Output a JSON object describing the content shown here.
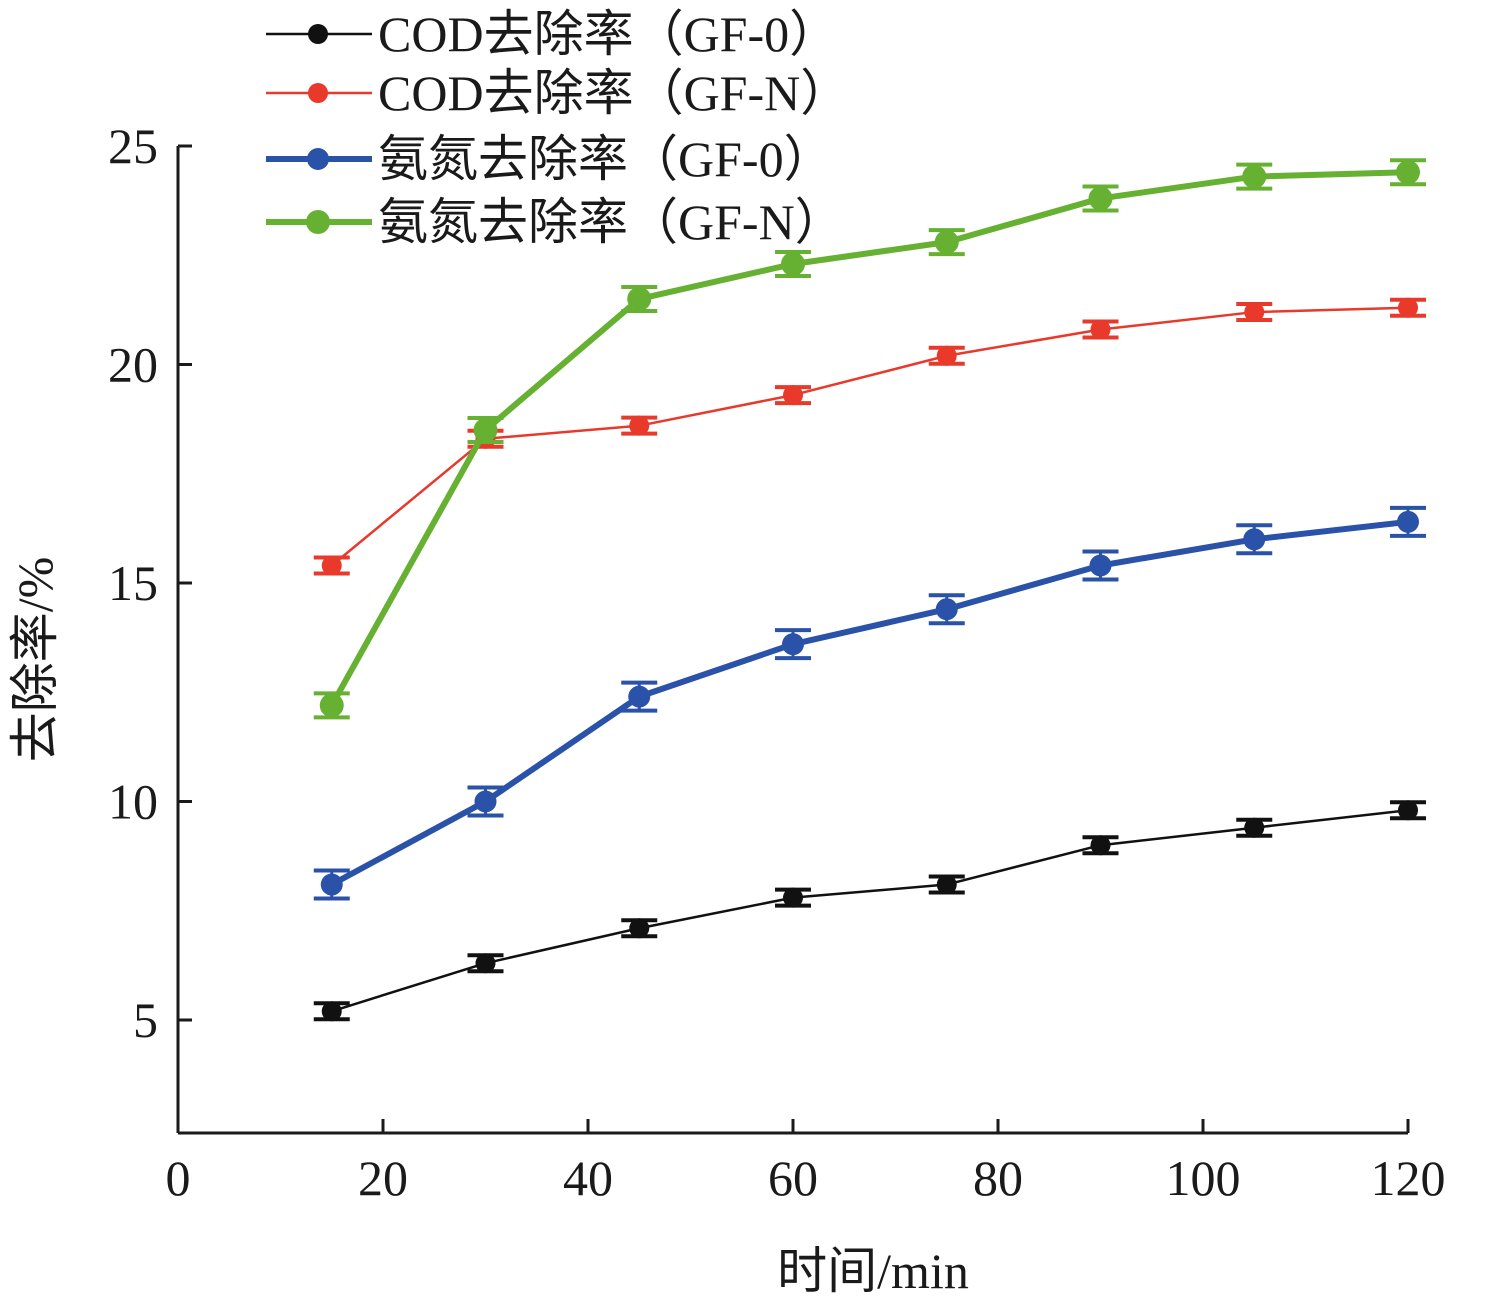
{
  "chart_data": {
    "type": "line",
    "xlabel": "时间/min",
    "ylabel": "去除率/%",
    "xlim": [
      0,
      120
    ],
    "ylim": [
      2.5,
      25
    ],
    "x_ticks": [
      "0",
      "20",
      "40",
      "60",
      "80",
      "100",
      "120"
    ],
    "y_ticks": [
      "5",
      "10",
      "15",
      "20",
      "25"
    ],
    "x": [
      15,
      30,
      45,
      60,
      75,
      90,
      105,
      120
    ],
    "legend_position": "top-left",
    "series": [
      {
        "name": "COD去除率（GF-0）",
        "color": "#111111",
        "values": [
          5.2,
          6.3,
          7.1,
          7.8,
          8.1,
          9.0,
          9.4,
          9.8
        ]
      },
      {
        "name": "COD去除率（GF-N）",
        "color": "#e8392b",
        "values": [
          15.4,
          18.3,
          18.6,
          19.3,
          20.2,
          20.8,
          21.2,
          21.3
        ]
      },
      {
        "name": "氨氮去除率（GF-0）",
        "color": "#2a52a8",
        "values": [
          8.1,
          10.0,
          12.4,
          13.6,
          14.4,
          15.4,
          16.0,
          16.4
        ]
      },
      {
        "name": "氨氮去除率（GF-N）",
        "color": "#66b032",
        "values": [
          12.2,
          18.5,
          21.5,
          22.3,
          22.8,
          23.8,
          24.3,
          24.4
        ]
      }
    ]
  }
}
